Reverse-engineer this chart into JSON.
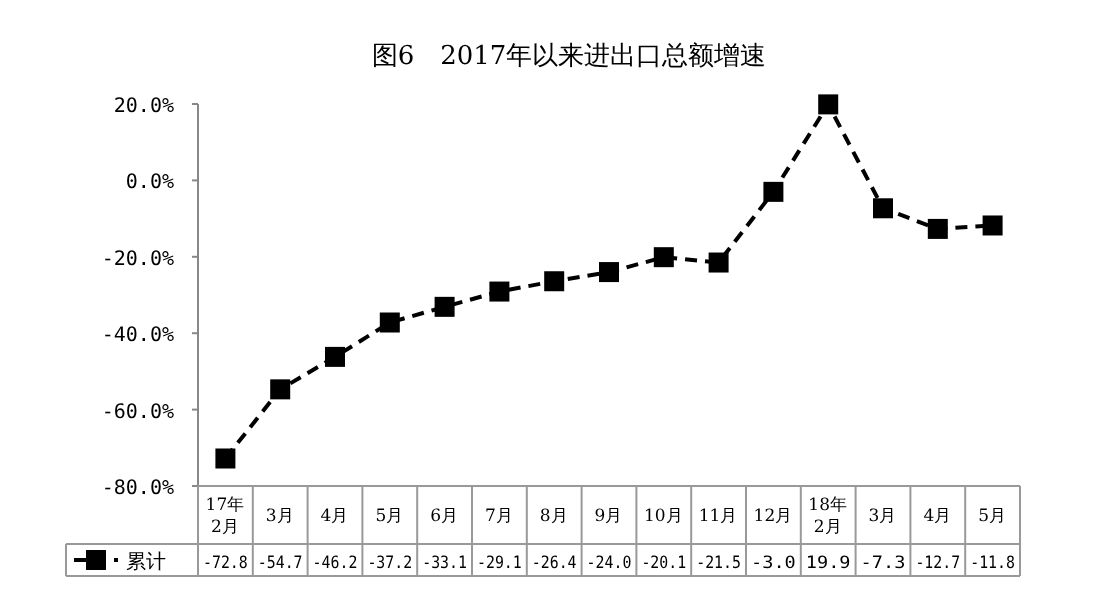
{
  "chart_data": {
    "type": "line",
    "title": "图6　2017年以来进出口总额增速",
    "categories": [
      "17年\n2月",
      "3月",
      "4月",
      "5月",
      "6月",
      "7月",
      "8月",
      "9月",
      "10月",
      "11月",
      "12月",
      "18年\n2月",
      "3月",
      "4月",
      "5月"
    ],
    "series": [
      {
        "name": "累计",
        "color": "#000000",
        "values": [
          -72.8,
          -54.7,
          -46.2,
          -37.2,
          -33.1,
          -29.1,
          -26.4,
          -24.0,
          -20.1,
          -21.5,
          -3.0,
          19.9,
          -7.3,
          -12.7,
          -11.8
        ],
        "value_labels": [
          "-72.8",
          "-54.7",
          "-46.2",
          "-37.2",
          "-33.1",
          "-29.1",
          "-26.4",
          "-24.0",
          "-20.1",
          "-21.5",
          "-3.0",
          "19.9",
          "-7.3",
          "-12.7",
          "-11.8"
        ]
      }
    ],
    "ylim": [
      -80,
      20
    ],
    "yticks": [
      {
        "value": -80,
        "label": "-80.0%"
      },
      {
        "value": -60,
        "label": "-60.0%"
      },
      {
        "value": -40,
        "label": "-40.0%"
      },
      {
        "value": -20,
        "label": "-20.0%"
      },
      {
        "value": 0,
        "label": "0.0%"
      },
      {
        "value": 20,
        "label": "20.0%"
      }
    ],
    "marker": "square",
    "line_style": "dashed",
    "grid": false,
    "legend": "bottom"
  }
}
